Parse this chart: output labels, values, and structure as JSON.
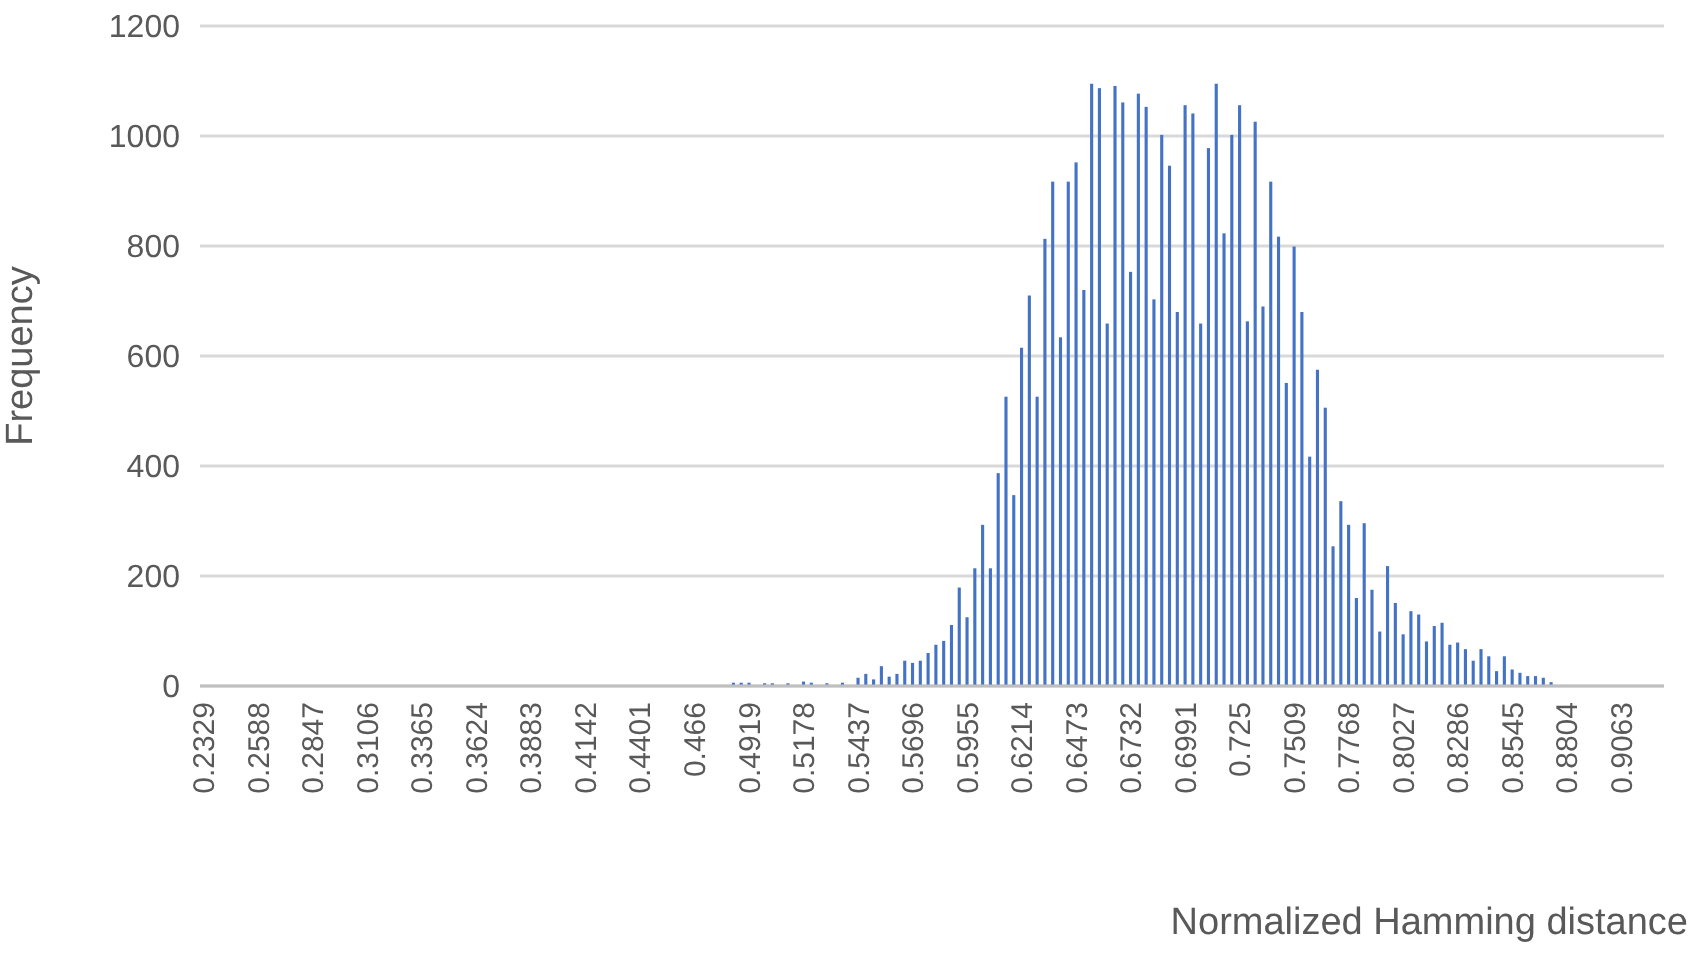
{
  "chart_data": {
    "type": "bar",
    "xlabel": "Normalized Hamming distance",
    "ylabel": "Frequency",
    "categories": [
      "0.2329",
      null,
      null,
      null,
      null,
      null,
      null,
      "0.2588",
      null,
      null,
      null,
      null,
      null,
      null,
      "0.2847",
      null,
      null,
      null,
      null,
      null,
      null,
      "0.3106",
      null,
      null,
      null,
      null,
      null,
      null,
      "0.3365",
      null,
      null,
      null,
      null,
      null,
      null,
      "0.3624",
      null,
      null,
      null,
      null,
      null,
      null,
      "0.3883",
      null,
      null,
      null,
      null,
      null,
      null,
      "0.4142",
      null,
      null,
      null,
      null,
      null,
      null,
      "0.4401",
      null,
      null,
      null,
      null,
      null,
      null,
      "0.466",
      null,
      null,
      null,
      null,
      null,
      null,
      "0.4919",
      null,
      null,
      null,
      null,
      null,
      null,
      "0.5178",
      null,
      null,
      null,
      null,
      null,
      null,
      "0.5437",
      null,
      null,
      null,
      null,
      null,
      null,
      "0.5696",
      null,
      null,
      null,
      null,
      null,
      null,
      "0.5955",
      null,
      null,
      null,
      null,
      null,
      null,
      "0.6214",
      null,
      null,
      null,
      null,
      null,
      null,
      "0.6473",
      null,
      null,
      null,
      null,
      null,
      null,
      "0.6732",
      null,
      null,
      null,
      null,
      null,
      null,
      "0.6991",
      null,
      null,
      null,
      null,
      null,
      null,
      "0.725",
      null,
      null,
      null,
      null,
      null,
      null,
      "0.7509",
      null,
      null,
      null,
      null,
      null,
      null,
      "0.7768",
      null,
      null,
      null,
      null,
      null,
      null,
      "0.8027",
      null,
      null,
      null,
      null,
      null,
      null,
      "0.8286",
      null,
      null,
      null,
      null,
      null,
      null,
      "0.8545",
      null,
      null,
      null,
      null,
      null,
      null,
      "0.8804",
      null,
      null,
      null,
      null,
      null,
      null,
      "0.9063",
      null,
      null,
      null,
      null,
      null
    ],
    "values": [
      0,
      0,
      0,
      0,
      0,
      0,
      0,
      0,
      0,
      0,
      0,
      0,
      0,
      0,
      0,
      0,
      0,
      0,
      0,
      0,
      0,
      0,
      0,
      0,
      0,
      0,
      0,
      0,
      0,
      0,
      0,
      0,
      0,
      0,
      0,
      0,
      0,
      0,
      0,
      0,
      0,
      0,
      0,
      0,
      0,
      0,
      0,
      0,
      0,
      0,
      0,
      0,
      0,
      0,
      0,
      0,
      0,
      0,
      0,
      0,
      0,
      0,
      0,
      0,
      0,
      0,
      0,
      0,
      6,
      6,
      6,
      0,
      5,
      5,
      0,
      5,
      0,
      8,
      6,
      0,
      5,
      0,
      6,
      0,
      15,
      22,
      12,
      36,
      17,
      22,
      46,
      42,
      46,
      60,
      75,
      82,
      111,
      179,
      125,
      214,
      293,
      214,
      387,
      526,
      347,
      615,
      710,
      526,
      813,
      917,
      634,
      917,
      952,
      720,
      1095,
      1087,
      659,
      1091,
      1061,
      753,
      1077,
      1053,
      703,
      1002,
      946,
      680,
      1056,
      1041,
      659,
      978,
      1095,
      823,
      1002,
      1056,
      663,
      1026,
      690,
      917,
      817,
      551,
      799,
      680,
      417,
      575,
      506,
      254,
      336,
      293,
      160,
      296,
      175,
      99,
      218,
      151,
      94,
      136,
      130,
      81,
      109,
      115,
      75,
      79,
      67,
      46,
      67,
      54,
      27,
      54,
      30,
      24,
      18,
      18,
      15,
      7,
      0,
      0,
      0,
      0,
      0,
      0,
      0,
      0,
      0,
      0,
      0,
      0,
      0,
      0
    ],
    "color": "#4472c4",
    "ylim": [
      0,
      1200
    ],
    "yticks": [
      0,
      200,
      400,
      600,
      800,
      1000,
      1200
    ],
    "grid": "y"
  }
}
